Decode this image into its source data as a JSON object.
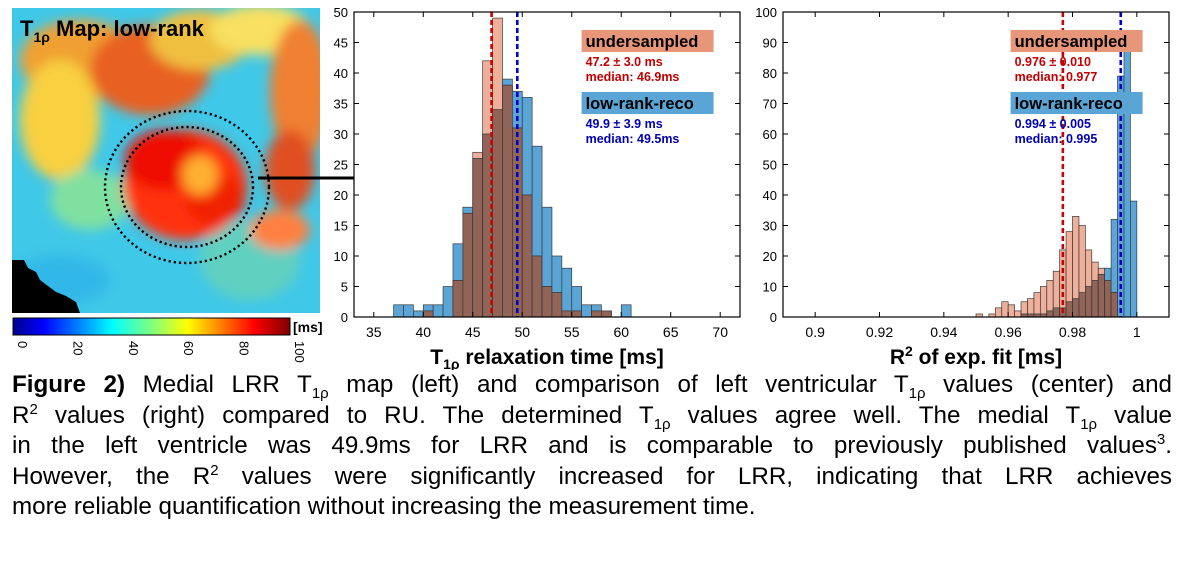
{
  "map_panel": {
    "title_main": "T",
    "title_sub": "1ρ",
    "title_rest": " Map: low-rank",
    "colorbar": {
      "unit": "[ms]",
      "ticks": [
        "0",
        "20",
        "40",
        "60",
        "80",
        "100"
      ],
      "range": [
        0,
        100
      ],
      "colormap": "jet"
    }
  },
  "chart_data": [
    {
      "type": "histogram",
      "xlabel_main": "T",
      "xlabel_sub": "1ρ",
      "xlabel_rest": " relaxation time [ms]",
      "xlim": [
        33,
        72
      ],
      "ylim": [
        0,
        50
      ],
      "xticks": [
        35,
        40,
        45,
        50,
        55,
        60,
        65,
        70
      ],
      "yticks": [
        0,
        5,
        10,
        15,
        20,
        25,
        30,
        35,
        40,
        45,
        50
      ],
      "bin_width": 1,
      "bins_start": 37,
      "series": [
        {
          "name": "undersampled",
          "color": "#e8967a",
          "counts": [
            0,
            0,
            0,
            1,
            0,
            0,
            6,
            17,
            27,
            42,
            49,
            38,
            31,
            20,
            10,
            5,
            4,
            1,
            1,
            0,
            1,
            1,
            0,
            0
          ]
        },
        {
          "name": "low-rank-reco",
          "color": "#5aa5d6",
          "counts": [
            2,
            2,
            1,
            2,
            2,
            5,
            12,
            18,
            26,
            30,
            34,
            39,
            37,
            36,
            28,
            18,
            10,
            8,
            5,
            2,
            2,
            1,
            0,
            2
          ]
        }
      ],
      "mean_lines": [
        {
          "x": 46.9,
          "color": "#cc0000"
        },
        {
          "x": 49.5,
          "color": "#0000cc"
        }
      ],
      "annotations": [
        {
          "label": "undersampled",
          "label_color": "#e8967a",
          "line1": "47.2 ± 3.0 ms",
          "line2": "median: 46.9ms",
          "text_color": "#c00000"
        },
        {
          "label": "low-rank-reco",
          "label_color": "#5aa5d6",
          "line1": "49.9 ± 3.9 ms",
          "line2": "median: 49.5ms",
          "text_color": "#0000b0"
        }
      ]
    },
    {
      "type": "histogram",
      "xlabel_main": "R",
      "xlabel_sup": "2",
      "xlabel_rest": " of exp. fit [ms]",
      "xlim": [
        0.89,
        1.01
      ],
      "ylim": [
        0,
        100
      ],
      "xticks": [
        0.9,
        0.92,
        0.94,
        0.96,
        0.98,
        1
      ],
      "xtick_labels": [
        "0.9",
        "0.92",
        "0.94",
        "0.96",
        "0.98",
        "1"
      ],
      "yticks": [
        0,
        10,
        20,
        30,
        40,
        50,
        60,
        70,
        80,
        90,
        100
      ],
      "bin_width": 0.002,
      "bins_start": 0.948,
      "series": [
        {
          "name": "undersampled",
          "color": "#e8967a",
          "counts": [
            0,
            1,
            0,
            1,
            3,
            5,
            4,
            2,
            5,
            6,
            8,
            10,
            12,
            15,
            22,
            28,
            33,
            30,
            22,
            18,
            16,
            12,
            8,
            0,
            0,
            0
          ]
        },
        {
          "name": "low-rank-reco",
          "color": "#5aa5d6",
          "counts": [
            0,
            0,
            0,
            0,
            0,
            0,
            0,
            0,
            1,
            1,
            1,
            1,
            2,
            3,
            3,
            5,
            6,
            8,
            10,
            12,
            14,
            16,
            32,
            79,
            93,
            38
          ]
        }
      ],
      "mean_lines": [
        {
          "x": 0.977,
          "color": "#cc0000"
        },
        {
          "x": 0.995,
          "color": "#0000cc"
        }
      ],
      "annotations": [
        {
          "label": "undersampled",
          "label_color": "#e8967a",
          "line1": "0.976 ± 0.010",
          "line2": "median: 0.977",
          "text_color": "#c00000"
        },
        {
          "label": "low-rank-reco",
          "label_color": "#5aa5d6",
          "line1": "0.994 ± 0.005",
          "line2": "median: 0.995",
          "text_color": "#0000b0"
        }
      ]
    }
  ],
  "caption": {
    "lead": "Figure 2)",
    "l1a": " Medial LRR T",
    "l1b": "1ρ",
    "l1c": " map (left) and comparison of left ventricular T",
    "l1d": "1ρ",
    "l1e": " values (center) and",
    "l2a": "R",
    "l2b": "2",
    "l2c": " values (right) compared to RU. The determined T",
    "l2d": "1ρ",
    "l2e": " values agree well. The medial T",
    "l2f": "1ρ",
    "l2g": " value",
    "l3a": "in the left ventricle was 49.9ms for LRR and is comparable to previously published values",
    "l3b": "3",
    "l3c": ".",
    "l4a": "However, the R",
    "l4b": "2",
    "l4c": " values were significantly increased for LRR, indicating that LRR achieves",
    "l5": "more reliable quantification without increasing the measurement time."
  }
}
